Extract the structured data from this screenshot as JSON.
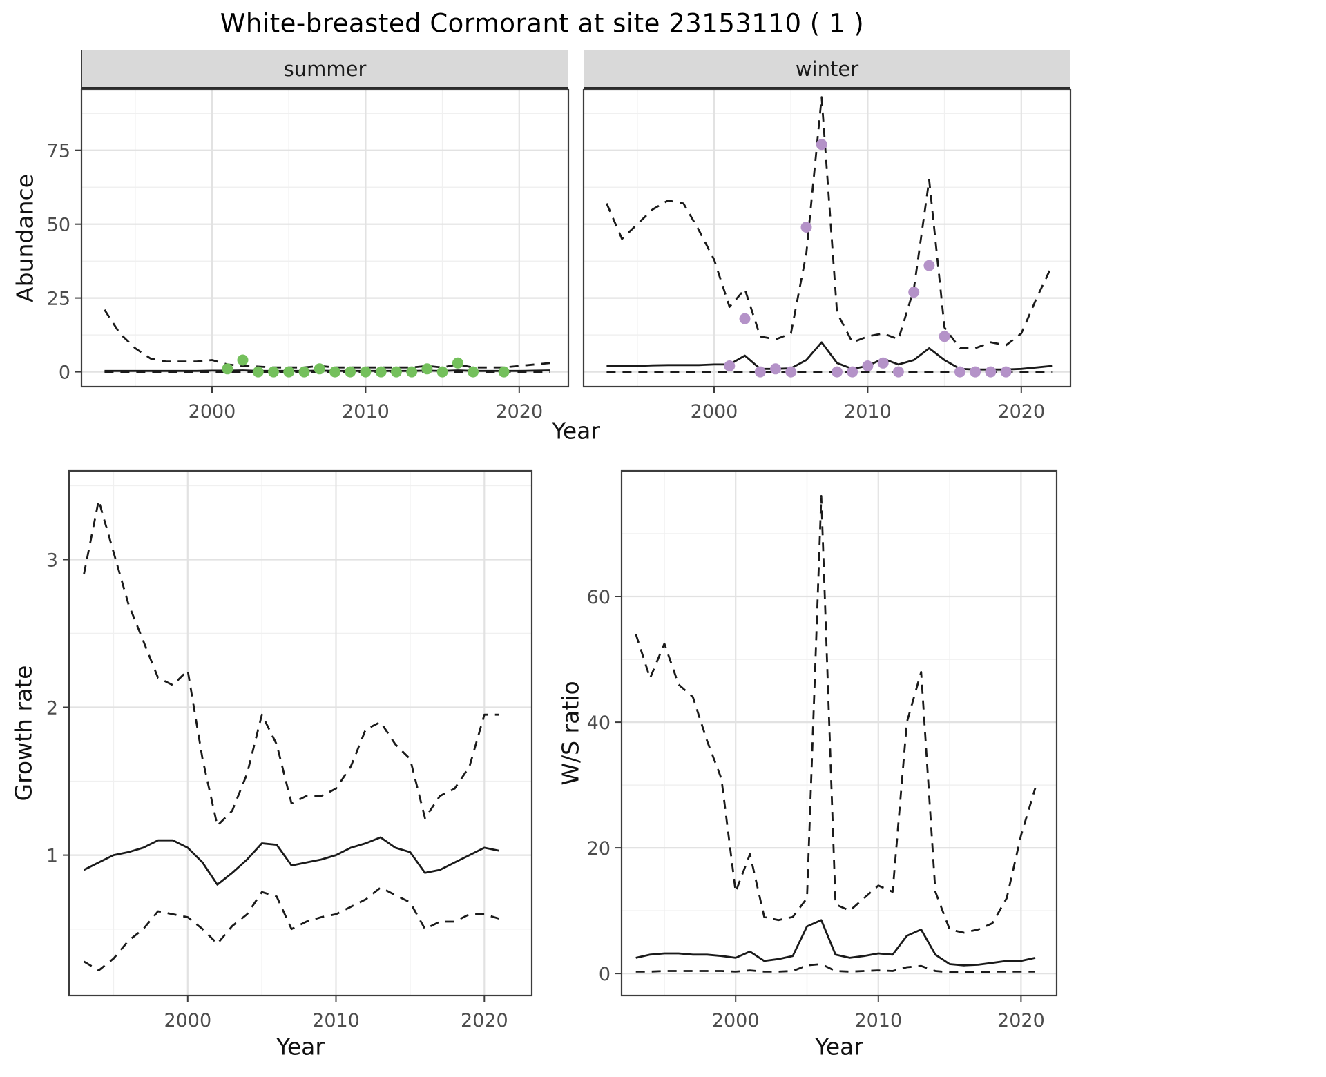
{
  "figure": {
    "title": "White-breasted Cormorant at site 23153110 ( 1 )"
  },
  "labels": {
    "facet_summer": "summer",
    "facet_winter": "winter",
    "abundance_axis": "Abundance",
    "growth_axis": "Growth rate",
    "ws_axis": "W/S ratio",
    "year_axis_top": "Year",
    "year_axis_growth": "Year",
    "year_axis_ws": "Year"
  },
  "colors": {
    "summer_points": "#74c05c",
    "winter_points": "#b492c8",
    "line": "#1a1a1a",
    "grid_major": "#e2e2e2",
    "grid_minor": "#f0f0f0",
    "strip_bg": "#d9d9d9",
    "panel_border": "#3c3c3c",
    "tick_text": "#4d4d4d"
  },
  "chart_data": [
    {
      "id": "summer-abundance",
      "type": "line",
      "title": "summer",
      "xlabel": "Year",
      "ylabel": "Abundance",
      "xlim": [
        1991.5,
        2023.2
      ],
      "ylim": [
        -5,
        95.5
      ],
      "xticks": [
        2000,
        2010,
        2020
      ],
      "xticks_minor": [
        1995,
        2005,
        2015
      ],
      "yticks": [
        0,
        25,
        50,
        75
      ],
      "yticks_minor": [
        12.5,
        37.5,
        62.5,
        87.5
      ],
      "x": [
        1993,
        1994,
        1995,
        1996,
        1997,
        1998,
        1999,
        2000,
        2001,
        2002,
        2003,
        2004,
        2005,
        2006,
        2007,
        2008,
        2009,
        2010,
        2011,
        2012,
        2013,
        2014,
        2015,
        2016,
        2017,
        2018,
        2019,
        2020,
        2021,
        2022
      ],
      "series": [
        {
          "name": "upper-ci",
          "style": "dashed",
          "values": [
            21,
            13,
            8,
            4.5,
            3.5,
            3.5,
            3.5,
            4,
            2.5,
            2,
            1.8,
            1.5,
            1.5,
            1.5,
            2,
            1.5,
            1.5,
            1.5,
            1.5,
            1.5,
            1.5,
            2,
            1.5,
            2.5,
            1.5,
            1.5,
            1.5,
            2,
            2.5,
            3
          ]
        },
        {
          "name": "median",
          "style": "solid",
          "values": [
            0.3,
            0.3,
            0.3,
            0.3,
            0.3,
            0.3,
            0.3,
            0.4,
            0.4,
            0.5,
            0.3,
            0.3,
            0.3,
            0.3,
            0.4,
            0.3,
            0.3,
            0.3,
            0.3,
            0.3,
            0.3,
            0.4,
            0.3,
            0.5,
            0.3,
            0.3,
            0.3,
            0.3,
            0.4,
            0.5
          ]
        },
        {
          "name": "lower-ci",
          "style": "dashed",
          "values": [
            0,
            0,
            0,
            0,
            0,
            0,
            0,
            0,
            0,
            0,
            0,
            0,
            0,
            0,
            0,
            0,
            0,
            0,
            0,
            0,
            0,
            0,
            0,
            0,
            0,
            0,
            0,
            0,
            0,
            0
          ]
        }
      ],
      "points": {
        "name": "summer-observation",
        "color_key": "summer_points",
        "x": [
          2001,
          2002,
          2003,
          2004,
          2005,
          2006,
          2007,
          2008,
          2009,
          2010,
          2011,
          2012,
          2013,
          2014,
          2015,
          2016,
          2017,
          2019
        ],
        "values": [
          1,
          4,
          0,
          0,
          0,
          0,
          1,
          0,
          0,
          0,
          0,
          0,
          0,
          1,
          0,
          3,
          0,
          0
        ]
      }
    },
    {
      "id": "winter-abundance",
      "type": "line",
      "title": "winter",
      "xlabel": "Year",
      "ylabel": "Abundance",
      "xlim": [
        1991.5,
        2023.2
      ],
      "ylim": [
        -5,
        95.5
      ],
      "xticks": [
        2000,
        2010,
        2020
      ],
      "xticks_minor": [
        1995,
        2005,
        2015
      ],
      "yticks": [
        0,
        25,
        50,
        75
      ],
      "yticks_minor": [
        12.5,
        37.5,
        62.5,
        87.5
      ],
      "x": [
        1993,
        1994,
        1995,
        1996,
        1997,
        1998,
        1999,
        2000,
        2001,
        2002,
        2003,
        2004,
        2005,
        2006,
        2007,
        2008,
        2009,
        2010,
        2011,
        2012,
        2013,
        2014,
        2015,
        2016,
        2017,
        2018,
        2019,
        2020,
        2021,
        2022
      ],
      "series": [
        {
          "name": "upper-ci",
          "style": "dashed",
          "values": [
            57,
            45,
            50,
            55,
            58,
            57,
            48,
            38,
            22,
            28,
            12,
            11,
            13,
            40,
            93,
            20,
            10,
            12,
            13,
            11,
            28,
            65,
            15,
            8,
            8,
            10,
            9,
            13,
            25,
            36
          ]
        },
        {
          "name": "median",
          "style": "solid",
          "values": [
            2,
            2,
            2,
            2.2,
            2.3,
            2.3,
            2.3,
            2.5,
            2.5,
            5.5,
            1,
            1,
            1.2,
            4,
            10,
            3,
            1,
            2,
            4.5,
            2.5,
            4,
            8,
            4,
            1,
            0.8,
            0.8,
            0.8,
            1,
            1.5,
            2
          ]
        },
        {
          "name": "lower-ci",
          "style": "dashed",
          "values": [
            0,
            0,
            0,
            0,
            0,
            0,
            0,
            0,
            0,
            0,
            0,
            0,
            0,
            0,
            0,
            0,
            0,
            0,
            0,
            0,
            0,
            0,
            0,
            0,
            0,
            0,
            0,
            0,
            0,
            0
          ]
        }
      ],
      "points": {
        "name": "winter-observation",
        "color_key": "winter_points",
        "x": [
          2001,
          2002,
          2003,
          2004,
          2005,
          2006,
          2007,
          2008,
          2009,
          2010,
          2011,
          2012,
          2013,
          2014,
          2015,
          2016,
          2017,
          2018,
          2019
        ],
        "values": [
          2,
          18,
          0,
          1,
          0,
          49,
          77,
          0,
          0,
          2,
          3,
          0,
          27,
          36,
          12,
          0,
          0,
          0,
          0
        ]
      }
    },
    {
      "id": "growth-rate",
      "type": "line",
      "title": "",
      "xlabel": "Year",
      "ylabel": "Growth rate",
      "xlim": [
        1992,
        2023.2
      ],
      "ylim": [
        0.05,
        3.6
      ],
      "xticks": [
        2000,
        2010,
        2020
      ],
      "xticks_minor": [
        1995,
        2005,
        2015
      ],
      "yticks": [
        1,
        2,
        3
      ],
      "yticks_minor": [
        0.5,
        1.5,
        2.5,
        3.5
      ],
      "x": [
        1993,
        1994,
        1995,
        1996,
        1997,
        1998,
        1999,
        2000,
        2001,
        2002,
        2003,
        2004,
        2005,
        2006,
        2007,
        2008,
        2009,
        2010,
        2011,
        2012,
        2013,
        2014,
        2015,
        2016,
        2017,
        2018,
        2019,
        2020,
        2021
      ],
      "series": [
        {
          "name": "upper-ci",
          "style": "dashed",
          "values": [
            2.9,
            3.4,
            3.05,
            2.7,
            2.45,
            2.2,
            2.15,
            2.25,
            1.65,
            1.2,
            1.3,
            1.55,
            1.95,
            1.75,
            1.35,
            1.4,
            1.4,
            1.45,
            1.6,
            1.85,
            1.9,
            1.75,
            1.65,
            1.25,
            1.4,
            1.45,
            1.6,
            1.95,
            1.95
          ]
        },
        {
          "name": "median",
          "style": "solid",
          "values": [
            0.9,
            0.95,
            1.0,
            1.02,
            1.05,
            1.1,
            1.1,
            1.05,
            0.95,
            0.8,
            0.88,
            0.97,
            1.08,
            1.07,
            0.93,
            0.95,
            0.97,
            1.0,
            1.05,
            1.08,
            1.12,
            1.05,
            1.02,
            0.88,
            0.9,
            0.95,
            1.0,
            1.05,
            1.03
          ]
        },
        {
          "name": "lower-ci",
          "style": "dashed",
          "values": [
            0.28,
            0.22,
            0.3,
            0.42,
            0.5,
            0.62,
            0.6,
            0.58,
            0.5,
            0.4,
            0.52,
            0.6,
            0.75,
            0.72,
            0.5,
            0.55,
            0.58,
            0.6,
            0.65,
            0.7,
            0.78,
            0.73,
            0.68,
            0.5,
            0.55,
            0.55,
            0.6,
            0.6,
            0.57
          ]
        }
      ]
    },
    {
      "id": "ws-ratio",
      "type": "line",
      "title": "",
      "xlabel": "Year",
      "ylabel": "W/S ratio",
      "xlim": [
        1992,
        2022.5
      ],
      "ylim": [
        -3.5,
        80
      ],
      "xticks": [
        2000,
        2010,
        2020
      ],
      "xticks_minor": [
        1995,
        2005,
        2015
      ],
      "yticks": [
        0,
        20,
        40,
        60
      ],
      "yticks_minor": [
        10,
        30,
        50,
        70
      ],
      "x": [
        1993,
        1994,
        1995,
        1996,
        1997,
        1998,
        1999,
        2000,
        2001,
        2002,
        2003,
        2004,
        2005,
        2006,
        2007,
        2008,
        2009,
        2010,
        2011,
        2012,
        2013,
        2014,
        2015,
        2016,
        2017,
        2018,
        2019,
        2020,
        2021
      ],
      "series": [
        {
          "name": "upper-ci",
          "style": "dashed",
          "values": [
            54,
            47,
            52.5,
            46,
            44,
            37,
            31,
            13,
            19,
            9,
            8.5,
            9,
            12,
            76,
            11,
            10,
            12,
            14,
            13,
            40,
            48,
            13,
            7,
            6.5,
            7,
            8,
            12,
            22,
            29.5
          ]
        },
        {
          "name": "median",
          "style": "solid",
          "values": [
            2.5,
            3,
            3.2,
            3.2,
            3,
            3,
            2.8,
            2.5,
            3.5,
            2,
            2.3,
            2.8,
            7.5,
            8.5,
            3,
            2.5,
            2.8,
            3.2,
            3,
            6,
            7,
            3,
            1.5,
            1.3,
            1.4,
            1.7,
            2,
            2,
            2.5
          ]
        },
        {
          "name": "lower-ci",
          "style": "dashed",
          "values": [
            0.3,
            0.3,
            0.4,
            0.4,
            0.4,
            0.4,
            0.4,
            0.3,
            0.5,
            0.3,
            0.3,
            0.4,
            1.3,
            1.5,
            0.4,
            0.3,
            0.4,
            0.5,
            0.4,
            1.0,
            1.2,
            0.4,
            0.2,
            0.2,
            0.2,
            0.3,
            0.3,
            0.3,
            0.3
          ]
        }
      ]
    }
  ]
}
